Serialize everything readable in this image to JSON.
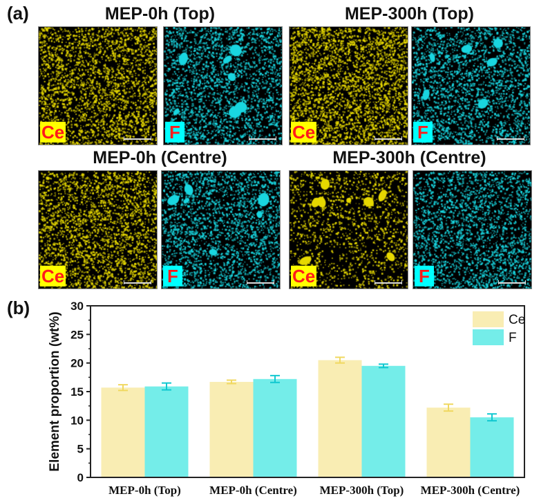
{
  "figure": {
    "panel_a_label": "(a)",
    "panel_b_label": "(b)",
    "colors": {
      "ce_map": "#e6d800",
      "f_map": "#19d6e0",
      "tag_text": "#ff1a1a"
    },
    "maps": [
      {
        "title": "MEP-0h (Top)",
        "tiles": [
          {
            "element": "Ce",
            "icon": "scale-bar"
          },
          {
            "element": "F",
            "icon": "scale-bar"
          }
        ]
      },
      {
        "title": "MEP-300h (Top)",
        "tiles": [
          {
            "element": "Ce",
            "icon": "scale-bar"
          },
          {
            "element": "F",
            "icon": "scale-bar"
          }
        ]
      },
      {
        "title": "MEP-0h (Centre)",
        "tiles": [
          {
            "element": "Ce",
            "icon": "scale-bar"
          },
          {
            "element": "F",
            "icon": "scale-bar"
          }
        ]
      },
      {
        "title": "MEP-300h (Centre)",
        "tiles": [
          {
            "element": "Ce",
            "icon": "scale-bar"
          },
          {
            "element": "F",
            "icon": "scale-bar"
          }
        ]
      }
    ]
  },
  "chart_data": {
    "type": "bar",
    "title": "",
    "xlabel": "",
    "ylabel": "Element proportion (wt%)",
    "ylim": [
      0,
      30
    ],
    "yticks": [
      0,
      5,
      10,
      15,
      20,
      25,
      30
    ],
    "grid": false,
    "legend_position": "top-right",
    "categories": [
      "MEP-0h (Top)",
      "MEP-0h (Centre)",
      "MEP-300h (Top)",
      "MEP-300h (Centre)"
    ],
    "series": [
      {
        "name": "Ce",
        "color": "#f9edb3",
        "error_color": "#f0d860",
        "values": [
          15.7,
          16.7,
          20.5,
          12.2
        ],
        "errors": [
          0.5,
          0.3,
          0.5,
          0.6
        ]
      },
      {
        "name": "F",
        "color": "#74ede9",
        "error_color": "#10c8d0",
        "values": [
          15.9,
          17.2,
          19.5,
          10.5
        ],
        "errors": [
          0.6,
          0.6,
          0.3,
          0.6
        ]
      }
    ]
  }
}
